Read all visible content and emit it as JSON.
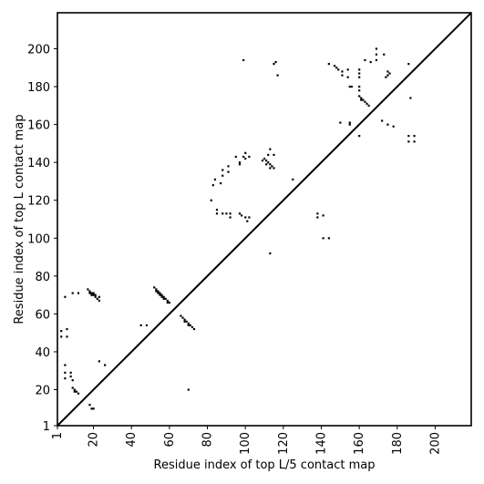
{
  "chart_data": {
    "type": "scatter",
    "xlabel": "Residue index of top L/5 contact map",
    "ylabel": "Residue index of top L contact map",
    "xlim": [
      1,
      219
    ],
    "ylim": [
      1,
      219
    ],
    "x_ticks": [
      1,
      20,
      40,
      60,
      80,
      100,
      120,
      140,
      160,
      180,
      200
    ],
    "y_ticks": [
      1,
      20,
      40,
      60,
      80,
      100,
      120,
      140,
      160,
      180,
      200
    ],
    "grid": false,
    "diagonal": true,
    "marker": "square",
    "marker_color": "#000000",
    "series": [
      {
        "points": [
          [
            17,
            73
          ],
          [
            18,
            72
          ],
          [
            19,
            71
          ],
          [
            20,
            70
          ],
          [
            21,
            69
          ],
          [
            22,
            68
          ],
          [
            23,
            67
          ],
          [
            20,
            71
          ],
          [
            21,
            70
          ],
          [
            18,
            71
          ],
          [
            19,
            70
          ],
          [
            23,
            69
          ],
          [
            5,
            69
          ],
          [
            9,
            71
          ],
          [
            12,
            71
          ],
          [
            52,
            74
          ],
          [
            53,
            73
          ],
          [
            54,
            72
          ],
          [
            55,
            71
          ],
          [
            56,
            70
          ],
          [
            57,
            69
          ],
          [
            58,
            68
          ],
          [
            59,
            67
          ],
          [
            60,
            66
          ],
          [
            53,
            72
          ],
          [
            55,
            70
          ],
          [
            57,
            68
          ],
          [
            59,
            66
          ],
          [
            56,
            69
          ],
          [
            54,
            71
          ],
          [
            45,
            54
          ],
          [
            48,
            54
          ],
          [
            66,
            59
          ],
          [
            67,
            58
          ],
          [
            68,
            57
          ],
          [
            69,
            56
          ],
          [
            70,
            55
          ],
          [
            71,
            54
          ],
          [
            72,
            53
          ],
          [
            73,
            52
          ],
          [
            68,
            56
          ],
          [
            70,
            54
          ],
          [
            3,
            51
          ],
          [
            6,
            52
          ],
          [
            3,
            48
          ],
          [
            6,
            48
          ],
          [
            5,
            33
          ],
          [
            5,
            29
          ],
          [
            8,
            29
          ],
          [
            8,
            27
          ],
          [
            9,
            25
          ],
          [
            5,
            26
          ],
          [
            9,
            21
          ],
          [
            10,
            20
          ],
          [
            11,
            19
          ],
          [
            12,
            18
          ],
          [
            10,
            19
          ],
          [
            18,
            12
          ],
          [
            19,
            10
          ],
          [
            20,
            10
          ],
          [
            23,
            35
          ],
          [
            26,
            33
          ],
          [
            70,
            20
          ],
          [
            82,
            120
          ],
          [
            83,
            128
          ],
          [
            84,
            131
          ],
          [
            85,
            115
          ],
          [
            85,
            113
          ],
          [
            87,
            129
          ],
          [
            88,
            133
          ],
          [
            88,
            136
          ],
          [
            88,
            113
          ],
          [
            90,
            113
          ],
          [
            91,
            135
          ],
          [
            91,
            138
          ],
          [
            92,
            111
          ],
          [
            92,
            113
          ],
          [
            95,
            143
          ],
          [
            97,
            139
          ],
          [
            97,
            140
          ],
          [
            97,
            113
          ],
          [
            98,
            112
          ],
          [
            99,
            143
          ],
          [
            100,
            142
          ],
          [
            100,
            145
          ],
          [
            100,
            111
          ],
          [
            101,
            109
          ],
          [
            102,
            143
          ],
          [
            102,
            111
          ],
          [
            109,
            141
          ],
          [
            110,
            142
          ],
          [
            111,
            141
          ],
          [
            112,
            140
          ],
          [
            113,
            139
          ],
          [
            114,
            138
          ],
          [
            115,
            137
          ],
          [
            111,
            139
          ],
          [
            113,
            137
          ],
          [
            112,
            144
          ],
          [
            113,
            147
          ],
          [
            115,
            144
          ],
          [
            125,
            131
          ],
          [
            113,
            92
          ],
          [
            138,
            113
          ],
          [
            138,
            111
          ],
          [
            141,
            112
          ],
          [
            141,
            100
          ],
          [
            144,
            100
          ],
          [
            99,
            194
          ],
          [
            115,
            192
          ],
          [
            116,
            193
          ],
          [
            117,
            186
          ],
          [
            144,
            192
          ],
          [
            147,
            191
          ],
          [
            148,
            190
          ],
          [
            149,
            189
          ],
          [
            151,
            188
          ],
          [
            151,
            186
          ],
          [
            154,
            189
          ],
          [
            154,
            185
          ],
          [
            155,
            180
          ],
          [
            156,
            180
          ],
          [
            160,
            189
          ],
          [
            160,
            187
          ],
          [
            160,
            185
          ],
          [
            160,
            180
          ],
          [
            160,
            178
          ],
          [
            160,
            175
          ],
          [
            161,
            174
          ],
          [
            162,
            173
          ],
          [
            163,
            172
          ],
          [
            164,
            171
          ],
          [
            165,
            170
          ],
          [
            161,
            173
          ],
          [
            163,
            194
          ],
          [
            166,
            193
          ],
          [
            169,
            194
          ],
          [
            169,
            197
          ],
          [
            169,
            200
          ],
          [
            173,
            197
          ],
          [
            175,
            188
          ],
          [
            176,
            187
          ],
          [
            175,
            186
          ],
          [
            174,
            185
          ],
          [
            150,
            161
          ],
          [
            155,
            161
          ],
          [
            155,
            160
          ],
          [
            160,
            154
          ],
          [
            172,
            162
          ],
          [
            175,
            160
          ],
          [
            178,
            159
          ],
          [
            186,
            192
          ],
          [
            187,
            174
          ],
          [
            186,
            154
          ],
          [
            189,
            154
          ],
          [
            186,
            151
          ],
          [
            189,
            151
          ]
        ]
      }
    ]
  }
}
